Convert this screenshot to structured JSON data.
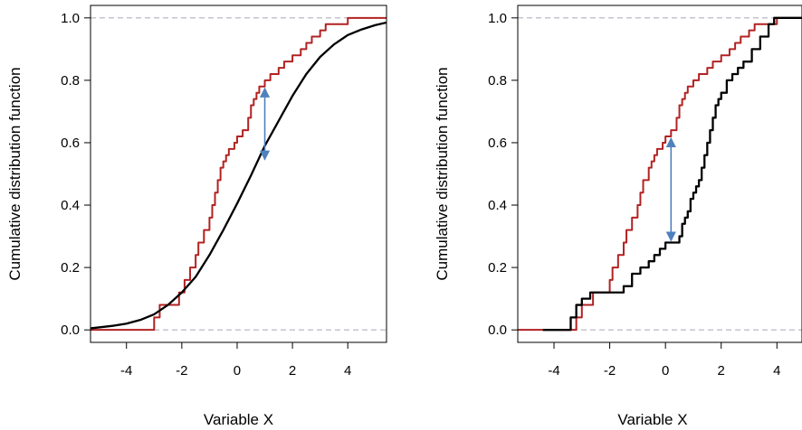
{
  "colors": {
    "empirical_sample": "#b22222",
    "reference": "#000000",
    "arrow": "#4f81bd",
    "reference_line": "#b0b0c0"
  },
  "chart_data": [
    {
      "type": "line",
      "description": "ECDF of a sample vs a theoretical CDF",
      "title": "",
      "xlabel": "Variable X",
      "ylabel": "Cumulative distribution function",
      "xlim": [
        -5.3,
        5.4
      ],
      "ylim": [
        -0.04,
        1.04
      ],
      "x_ticks": [
        "-4",
        "-2",
        "0",
        "2",
        "4"
      ],
      "y_ticks": [
        "0.0",
        "0.2",
        "0.4",
        "0.6",
        "0.8",
        "1.0"
      ],
      "x_tick_values": [
        -4,
        -2,
        0,
        2,
        4
      ],
      "y_tick_values": [
        0,
        0.2,
        0.4,
        0.6,
        0.8,
        1.0
      ],
      "reference_hlines": [
        0,
        1
      ],
      "series": [
        {
          "role": "sample_ecdf",
          "step": true,
          "x": [
            -5.3,
            -3.0,
            -2.8,
            -2.1,
            -1.9,
            -1.7,
            -1.5,
            -1.4,
            -1.2,
            -1.0,
            -0.9,
            -0.8,
            -0.7,
            -0.6,
            -0.5,
            -0.4,
            -0.3,
            -0.1,
            0.0,
            0.2,
            0.4,
            0.5,
            0.6,
            0.7,
            0.8,
            1.0,
            1.2,
            1.5,
            1.7,
            2.0,
            2.3,
            2.5,
            2.7,
            3.0,
            3.2,
            3.5,
            4.0,
            5.4
          ],
          "y": [
            0.0,
            0.04,
            0.08,
            0.12,
            0.16,
            0.2,
            0.24,
            0.28,
            0.32,
            0.36,
            0.4,
            0.44,
            0.48,
            0.52,
            0.54,
            0.56,
            0.58,
            0.6,
            0.62,
            0.64,
            0.68,
            0.72,
            0.74,
            0.76,
            0.78,
            0.8,
            0.82,
            0.84,
            0.86,
            0.88,
            0.9,
            0.92,
            0.94,
            0.96,
            0.98,
            0.98,
            1.0,
            1.0
          ]
        },
        {
          "role": "theoretical_cdf",
          "step": false,
          "x": [
            -5.3,
            -5.0,
            -4.5,
            -4.0,
            -3.5,
            -3.0,
            -2.5,
            -2.0,
            -1.5,
            -1.0,
            -0.5,
            0.0,
            0.5,
            1.0,
            1.5,
            2.0,
            2.5,
            3.0,
            3.5,
            4.0,
            4.5,
            5.0,
            5.4
          ],
          "y": [
            0.005,
            0.008,
            0.013,
            0.02,
            0.032,
            0.05,
            0.08,
            0.12,
            0.17,
            0.24,
            0.32,
            0.405,
            0.495,
            0.59,
            0.67,
            0.75,
            0.82,
            0.875,
            0.915,
            0.945,
            0.963,
            0.977,
            0.985
          ]
        }
      ],
      "arrow": {
        "x": 1.0,
        "y_from": 0.78,
        "y_to": 0.54
      }
    },
    {
      "type": "line",
      "description": "ECDFs of two samples",
      "title": "",
      "xlabel": "Variable X",
      "ylabel": "Cumulative distribution function",
      "xlim": [
        -5.3,
        4.9
      ],
      "ylim": [
        -0.04,
        1.04
      ],
      "x_ticks": [
        "-4",
        "-2",
        "0",
        "2",
        "4"
      ],
      "y_ticks": [
        "0.0",
        "0.2",
        "0.4",
        "0.6",
        "0.8",
        "1.0"
      ],
      "x_tick_values": [
        -4,
        -2,
        0,
        2,
        4
      ],
      "y_tick_values": [
        0,
        0.2,
        0.4,
        0.6,
        0.8,
        1.0
      ],
      "reference_hlines": [
        0,
        1
      ],
      "series": [
        {
          "role": "sample_1_ecdf",
          "step": true,
          "x": [
            -5.3,
            -3.2,
            -3.0,
            -2.6,
            -2.0,
            -1.9,
            -1.7,
            -1.5,
            -1.4,
            -1.2,
            -1.0,
            -0.9,
            -0.8,
            -0.6,
            -0.5,
            -0.4,
            -0.3,
            -0.1,
            0.0,
            0.2,
            0.4,
            0.5,
            0.6,
            0.7,
            0.8,
            1.0,
            1.2,
            1.5,
            1.7,
            2.0,
            2.3,
            2.5,
            2.7,
            3.0,
            3.2,
            3.5,
            4.0,
            4.9
          ],
          "y": [
            0.0,
            0.04,
            0.08,
            0.12,
            0.16,
            0.2,
            0.24,
            0.28,
            0.32,
            0.36,
            0.4,
            0.44,
            0.48,
            0.52,
            0.54,
            0.56,
            0.58,
            0.6,
            0.62,
            0.64,
            0.68,
            0.72,
            0.74,
            0.76,
            0.78,
            0.8,
            0.82,
            0.84,
            0.86,
            0.88,
            0.9,
            0.92,
            0.94,
            0.96,
            0.98,
            0.98,
            1.0,
            1.0
          ]
        },
        {
          "role": "sample_2_ecdf",
          "step": true,
          "x": [
            -4.4,
            -3.4,
            -3.2,
            -3.0,
            -2.7,
            -1.5,
            -1.2,
            -0.9,
            -0.6,
            -0.4,
            -0.2,
            0.0,
            0.2,
            0.5,
            0.6,
            0.7,
            0.8,
            0.9,
            1.0,
            1.1,
            1.2,
            1.3,
            1.4,
            1.5,
            1.6,
            1.7,
            1.8,
            1.9,
            2.0,
            2.2,
            2.4,
            2.6,
            2.8,
            3.1,
            3.4,
            3.7,
            3.9,
            4.9
          ],
          "y": [
            0.0,
            0.04,
            0.08,
            0.1,
            0.12,
            0.14,
            0.18,
            0.2,
            0.22,
            0.24,
            0.26,
            0.28,
            0.28,
            0.3,
            0.34,
            0.36,
            0.38,
            0.42,
            0.44,
            0.46,
            0.48,
            0.52,
            0.56,
            0.6,
            0.64,
            0.68,
            0.72,
            0.74,
            0.76,
            0.8,
            0.82,
            0.84,
            0.86,
            0.9,
            0.94,
            0.98,
            1.0,
            1.0
          ]
        }
      ],
      "arrow": {
        "x": 0.2,
        "y_from": 0.62,
        "y_to": 0.28
      }
    }
  ]
}
